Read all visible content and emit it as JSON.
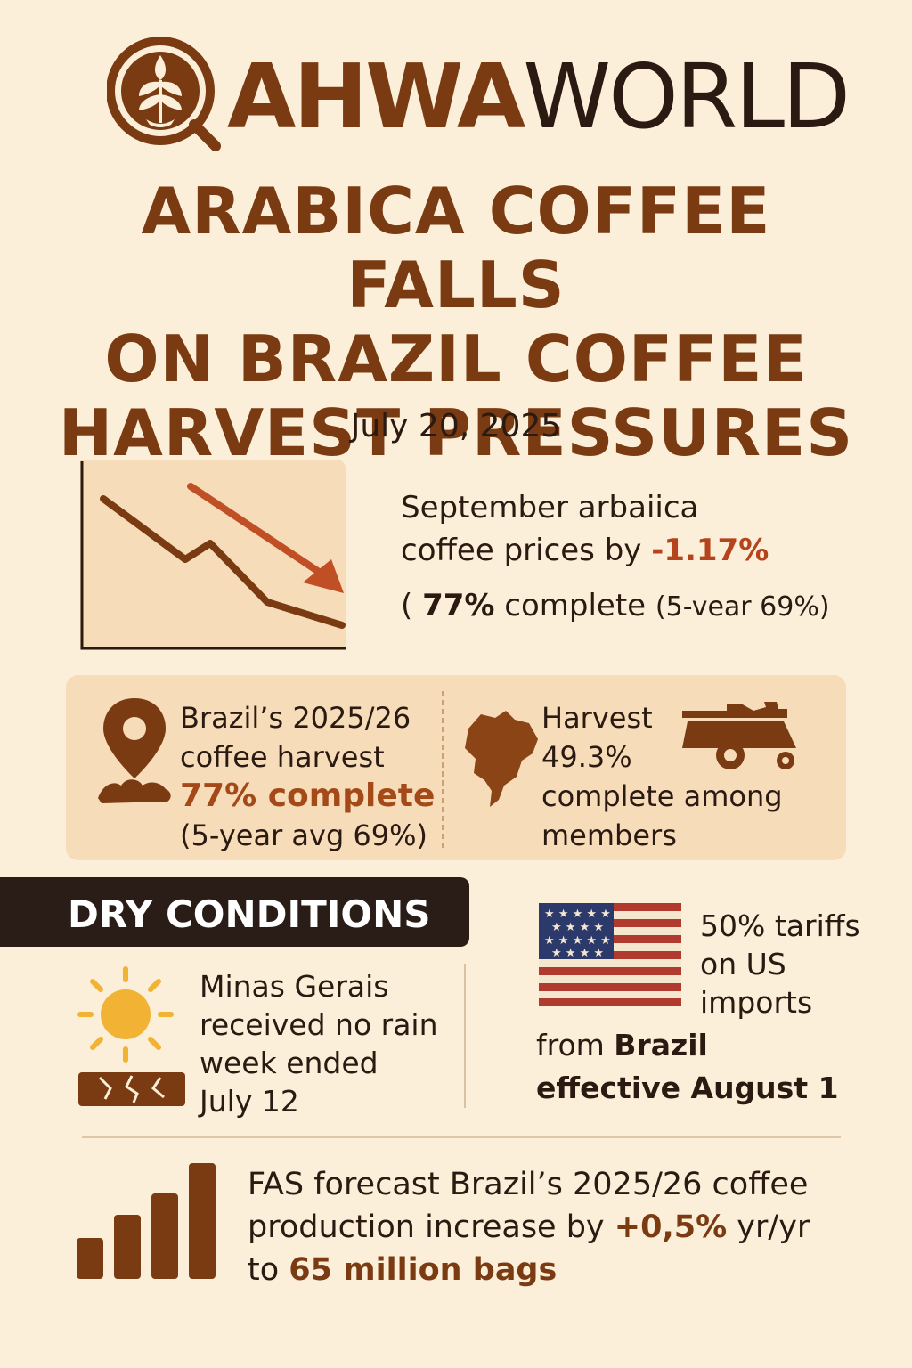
{
  "brand": {
    "name_part1": "AHWA",
    "name_part2": "WORLD"
  },
  "headline": {
    "line1": "ARABICA COFFEE FALLS",
    "line2": "ON BRAZIL COFFEE",
    "line3": "HARVEST PRESSURES"
  },
  "date": "July 20, 2025",
  "price": {
    "line1": "September arbaiica",
    "line2_prefix": "coffee prices by ",
    "change": "-1.17%",
    "line3_open": "( ",
    "line3_pct": "77%",
    "line3_mid": " complete ",
    "line3_small": "(5-vear 69%)"
  },
  "brazil_harvest": {
    "line1": "Brazil’s 2025/26",
    "line2": "coffee harvest",
    "pct": "77% complete",
    "avg": "(5-year avg 69%)"
  },
  "members_harvest": {
    "line1": "Harvest",
    "line2": "49.3%",
    "line3": "complete among",
    "line4": "members"
  },
  "dry": {
    "title": "DRY CONDITIONS",
    "line1": "Minas Gerais",
    "line2": "received no rain",
    "line3": "week ended",
    "line4": "July 12"
  },
  "tariff": {
    "line1": "50% tariffs",
    "line2": "on US",
    "line3": "imports",
    "line4_prefix": "from ",
    "line4_bold": "Brazil",
    "line5": "effective August 1"
  },
  "fas": {
    "line1": "FAS forecast Brazil’s 2025/26 coffee",
    "line2_prefix": "production increase by ",
    "change": "+0,5%",
    "line2_suffix": " yr/yr",
    "line3_prefix": "to ",
    "amount": "65 million bags"
  },
  "colors": {
    "background": "#fbefd9",
    "brand_brown": "#7a3b13",
    "accent_orange": "#b5441c",
    "panel": "#f6dcb9",
    "dark_banner": "#2a1d17",
    "sun": "#f2b233"
  },
  "icons": [
    "latte-cup-logo-icon",
    "down-trend-chart-icon",
    "map-pin-icon",
    "brazil-map-icon",
    "harvester-truck-icon",
    "sun-icon",
    "cracked-earth-icon",
    "us-flag-icon",
    "bar-chart-icon"
  ]
}
